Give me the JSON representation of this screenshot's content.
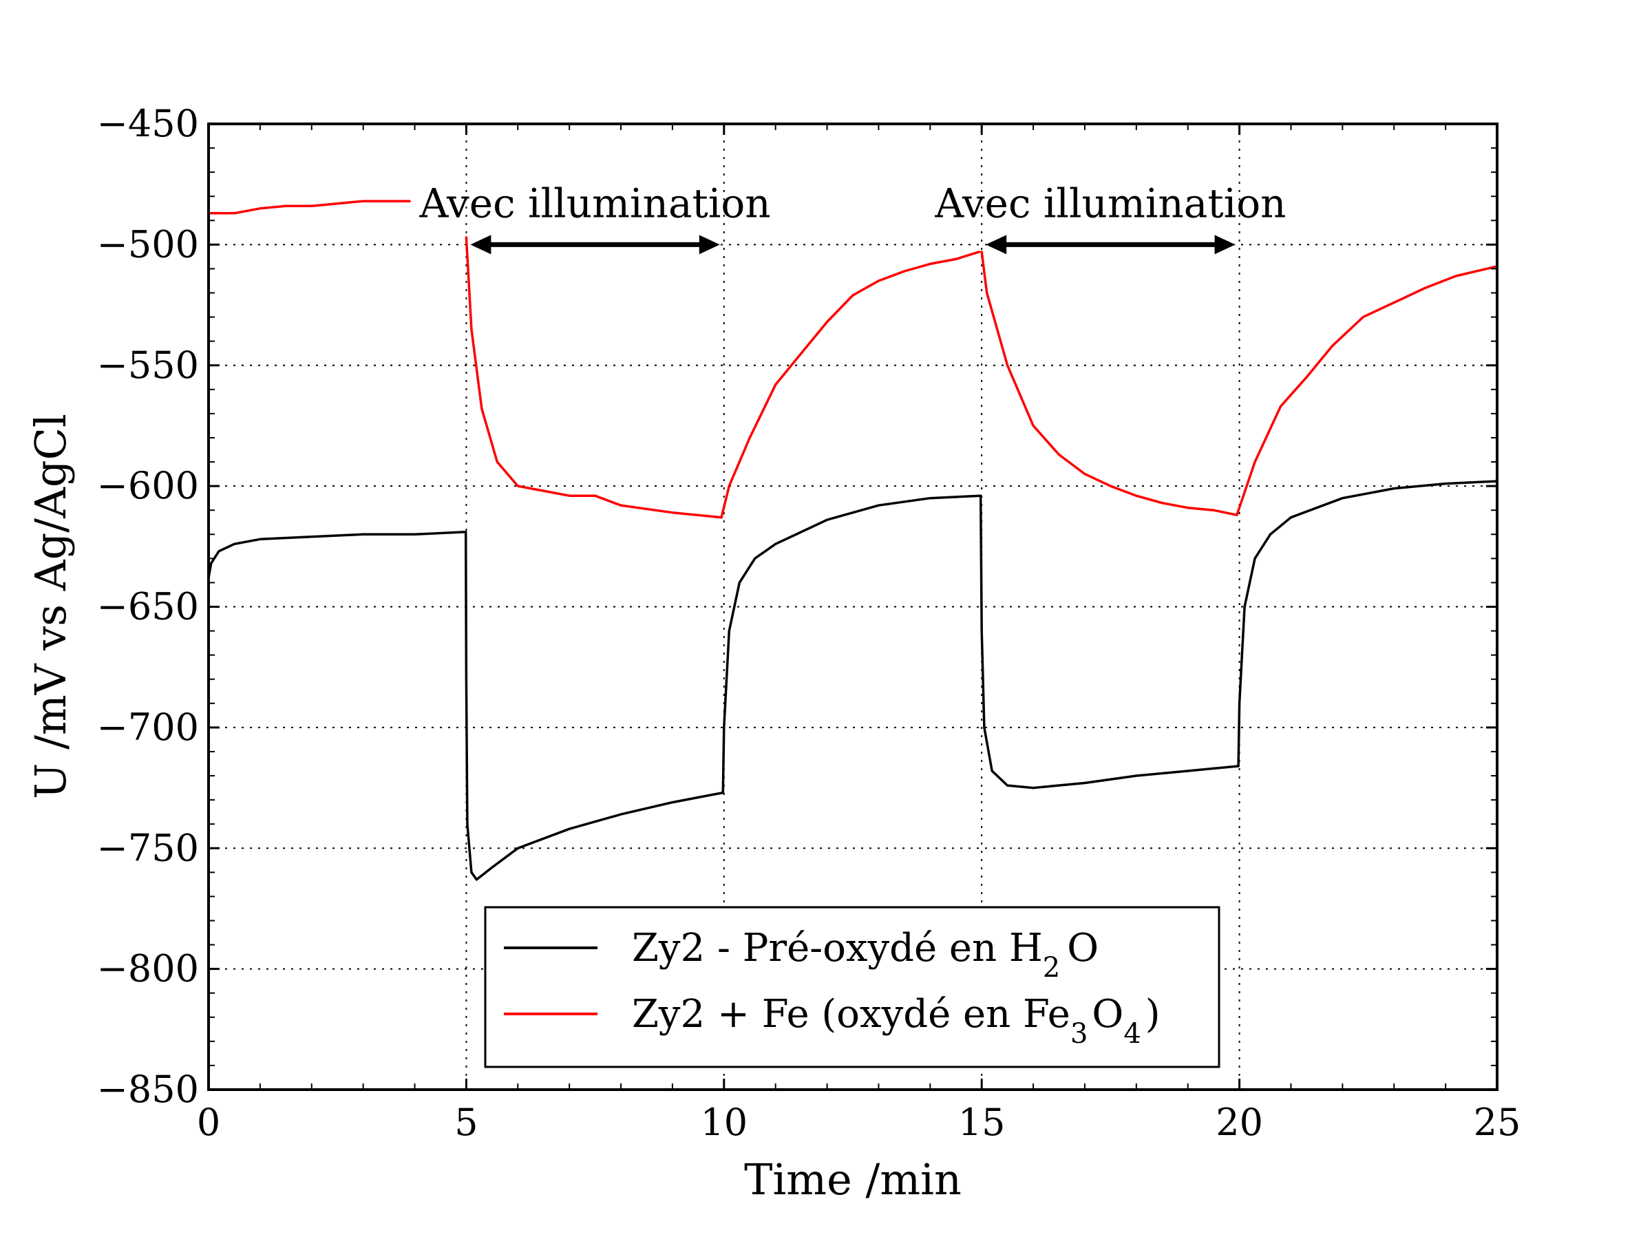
{
  "chart_data": {
    "type": "line",
    "xlabel": "Time /min",
    "ylabel": "U /mV vs Ag/AgCl",
    "xlim": [
      0,
      25
    ],
    "ylim": [
      -850,
      -450
    ],
    "xticks": [
      "0",
      "5",
      "10",
      "15",
      "20",
      "25"
    ],
    "yticks": [
      "−450",
      "−500",
      "−550",
      "−600",
      "−650",
      "−700",
      "−750",
      "−800",
      "−850"
    ],
    "grid": true,
    "legend_position": "lower-center",
    "colors": {
      "black_series": "#000000",
      "red_series": "#ff0000"
    },
    "annotations": [
      {
        "text": "Avec illumination",
        "x_from": 5,
        "x_to": 10,
        "y": -500
      },
      {
        "text": "Avec illumination",
        "x_from": 15,
        "x_to": 20,
        "y": -500
      }
    ],
    "series": [
      {
        "name": "Zy2 - Pré-oxydé en H2O",
        "legend_main": "Zy2 - Pré-oxydé en H",
        "legend_sub": "2",
        "legend_end": "O",
        "color": "#000000",
        "segments": [
          [
            [
              0,
              -638
            ],
            [
              0.05,
              -632
            ],
            [
              0.2,
              -627
            ],
            [
              0.5,
              -624
            ],
            [
              1,
              -622
            ],
            [
              2,
              -621
            ],
            [
              3,
              -620
            ],
            [
              4,
              -620
            ],
            [
              4.99,
              -619
            ]
          ],
          [
            [
              4.99,
              -619
            ],
            [
              5.0,
              -680
            ],
            [
              5.02,
              -740
            ],
            [
              5.1,
              -760
            ],
            [
              5.2,
              -763
            ],
            [
              5.5,
              -758
            ],
            [
              6,
              -750
            ],
            [
              7,
              -742
            ],
            [
              8,
              -736
            ],
            [
              9,
              -731
            ],
            [
              9.98,
              -727
            ]
          ],
          [
            [
              9.98,
              -727
            ],
            [
              10.0,
              -700
            ],
            [
              10.1,
              -660
            ],
            [
              10.3,
              -640
            ],
            [
              10.6,
              -630
            ],
            [
              11,
              -624
            ],
            [
              12,
              -614
            ],
            [
              13,
              -608
            ],
            [
              14,
              -605
            ],
            [
              14.98,
              -604
            ]
          ],
          [
            [
              14.98,
              -604
            ],
            [
              15.0,
              -660
            ],
            [
              15.05,
              -700
            ],
            [
              15.2,
              -718
            ],
            [
              15.5,
              -724
            ],
            [
              16,
              -725
            ],
            [
              17,
              -723
            ],
            [
              18,
              -720
            ],
            [
              19,
              -718
            ],
            [
              19.98,
              -716
            ]
          ],
          [
            [
              19.98,
              -716
            ],
            [
              20.0,
              -690
            ],
            [
              20.1,
              -650
            ],
            [
              20.3,
              -630
            ],
            [
              20.6,
              -620
            ],
            [
              21,
              -613
            ],
            [
              22,
              -605
            ],
            [
              23,
              -601
            ],
            [
              24,
              -599
            ],
            [
              25,
              -598
            ]
          ]
        ]
      },
      {
        "name": "Zy2 + Fe (oxydé en Fe3O4)",
        "legend_main": "Zy2 + Fe (oxydé en Fe",
        "legend_sub1": "3",
        "legend_mid": "O",
        "legend_sub2": "4",
        "legend_end": ")",
        "color": "#ff0000",
        "segments": [
          [
            [
              0,
              -487
            ],
            [
              0.5,
              -487
            ],
            [
              1,
              -485
            ],
            [
              1.5,
              -484
            ],
            [
              2,
              -484
            ],
            [
              2.5,
              -483
            ],
            [
              3,
              -482
            ],
            [
              3.5,
              -482
            ],
            [
              3.9,
              -482
            ]
          ],
          [
            [
              5.0,
              -497
            ],
            [
              5.1,
              -535
            ],
            [
              5.3,
              -568
            ],
            [
              5.6,
              -590
            ],
            [
              6,
              -600
            ],
            [
              6.5,
              -602
            ],
            [
              7,
              -604
            ],
            [
              7.5,
              -604
            ],
            [
              8,
              -608
            ],
            [
              9,
              -611
            ],
            [
              9.95,
              -613
            ]
          ],
          [
            [
              9.95,
              -613
            ],
            [
              10.1,
              -600
            ],
            [
              10.5,
              -580
            ],
            [
              11,
              -558
            ],
            [
              11.5,
              -545
            ],
            [
              12,
              -532
            ],
            [
              12.5,
              -521
            ],
            [
              13,
              -515
            ],
            [
              13.5,
              -511
            ],
            [
              14,
              -508
            ],
            [
              14.5,
              -506
            ],
            [
              14.95,
              -503
            ]
          ],
          [
            [
              15.0,
              -503
            ],
            [
              15.1,
              -520
            ],
            [
              15.5,
              -550
            ],
            [
              16,
              -575
            ],
            [
              16.5,
              -587
            ],
            [
              17,
              -595
            ],
            [
              17.5,
              -600
            ],
            [
              18,
              -604
            ],
            [
              18.5,
              -607
            ],
            [
              19,
              -609
            ],
            [
              19.5,
              -610
            ],
            [
              19.95,
              -612
            ]
          ],
          [
            [
              19.95,
              -612
            ],
            [
              20.3,
              -590
            ],
            [
              20.8,
              -567
            ],
            [
              21.3,
              -555
            ],
            [
              21.8,
              -542
            ],
            [
              22.4,
              -530
            ],
            [
              23,
              -524
            ],
            [
              23.6,
              -518
            ],
            [
              24.2,
              -513
            ],
            [
              25,
              -509
            ]
          ]
        ]
      }
    ]
  }
}
